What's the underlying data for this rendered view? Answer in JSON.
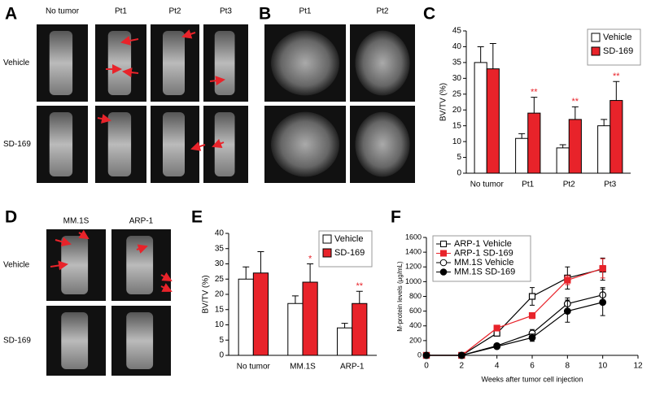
{
  "image_panels": [
    {
      "label": "A",
      "columns": [
        "No tumor",
        "Pt1",
        "Pt2",
        "Pt3"
      ],
      "rows": [
        "Vehicle",
        "SD-169"
      ]
    },
    {
      "label": "B",
      "columns": [
        "Pt1",
        "Pt2"
      ]
    },
    {
      "label": "D",
      "columns": [
        "MM.1S",
        "ARP-1"
      ],
      "rows": [
        "Vehicle",
        "SD-169"
      ]
    }
  ],
  "chart_data": [
    {
      "type": "bar",
      "label": "C",
      "y_label": "BV/TV (%)",
      "categories": [
        "No tumor",
        "Pt1",
        "Pt2",
        "Pt3"
      ],
      "series": [
        {
          "name": "Vehicle",
          "color": "#ffffff",
          "values": [
            35,
            11,
            8,
            15
          ],
          "errors": [
            5,
            1.5,
            1,
            2
          ]
        },
        {
          "name": "SD-169",
          "color": "#e8232a",
          "values": [
            33,
            19,
            17,
            23
          ],
          "errors": [
            8,
            5,
            4,
            6
          ],
          "significance": [
            null,
            "**",
            "**",
            "**"
          ]
        }
      ],
      "ylim": [
        0,
        45
      ],
      "yticks": [
        0,
        5,
        10,
        15,
        20,
        25,
        30,
        35,
        40,
        45
      ]
    },
    {
      "type": "bar",
      "label": "E",
      "y_label": "BV/TV (%)",
      "categories": [
        "No tumor",
        "MM.1S",
        "ARP-1"
      ],
      "series": [
        {
          "name": "Vehicle",
          "color": "#ffffff",
          "values": [
            25,
            17,
            9
          ],
          "errors": [
            4,
            2.5,
            1.5
          ]
        },
        {
          "name": "SD-169",
          "color": "#e8232a",
          "values": [
            27,
            24,
            17
          ],
          "errors": [
            7,
            6,
            4
          ],
          "significance": [
            null,
            "*",
            "**"
          ]
        }
      ],
      "ylim": [
        0,
        40
      ],
      "yticks": [
        0,
        5,
        10,
        15,
        20,
        25,
        30,
        35,
        40
      ]
    },
    {
      "type": "line",
      "label": "F",
      "x_label": "Weeks after tumor cell injection",
      "y_label": "M-protein levels (μg/mL)",
      "x": [
        0,
        2,
        4,
        6,
        8,
        10
      ],
      "series": [
        {
          "name": "ARP-1 Vehicle",
          "color": "#000000",
          "marker": "square",
          "filled": false,
          "values": [
            0,
            0,
            300,
            800,
            1050,
            1170
          ],
          "errors": [
            0,
            0,
            30,
            120,
            150,
            150
          ]
        },
        {
          "name": "ARP-1 SD-169",
          "color": "#e8232a",
          "marker": "square",
          "filled": true,
          "values": [
            0,
            0,
            370,
            540,
            1020,
            1180
          ],
          "errors": [
            0,
            0,
            20,
            40,
            60,
            130
          ]
        },
        {
          "name": "MM.1S Vehicle",
          "color": "#000000",
          "marker": "circle",
          "filled": false,
          "values": [
            0,
            0,
            130,
            300,
            700,
            820
          ],
          "errors": [
            0,
            0,
            20,
            50,
            80,
            100
          ]
        },
        {
          "name": "MM.1S SD-169",
          "color": "#000000",
          "marker": "circle",
          "filled": true,
          "values": [
            0,
            0,
            120,
            240,
            600,
            720
          ],
          "errors": [
            0,
            0,
            20,
            50,
            150,
            180
          ]
        }
      ],
      "xlim": [
        0,
        12
      ],
      "xticks": [
        0,
        2,
        4,
        6,
        8,
        10,
        12
      ],
      "ylim": [
        0,
        1600
      ],
      "yticks": [
        0,
        200,
        400,
        600,
        800,
        1000,
        1200,
        1400,
        1600
      ]
    }
  ]
}
